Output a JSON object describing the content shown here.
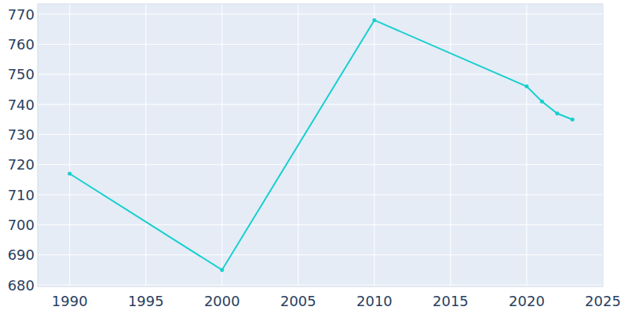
{
  "chart_data": {
    "type": "line",
    "x": [
      1990,
      2000,
      2010,
      2020,
      2021,
      2022,
      2023
    ],
    "values": [
      717,
      685,
      768,
      746,
      741,
      737,
      735
    ],
    "color": "#17cfcf",
    "marker": "circle",
    "xlim": [
      1987.9,
      2025.0
    ],
    "xticks": [
      1990,
      1995,
      2000,
      2005,
      2010,
      2015,
      2020,
      2025
    ],
    "ylim": [
      679.5,
      773.4
    ],
    "yticks": [
      680,
      690,
      700,
      710,
      720,
      730,
      740,
      750,
      760,
      770
    ],
    "grid": true
  }
}
